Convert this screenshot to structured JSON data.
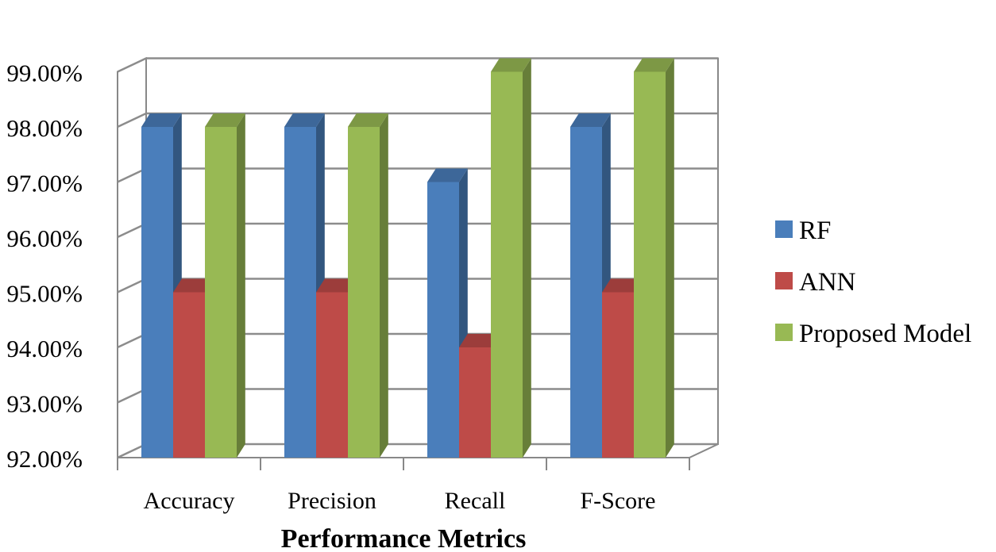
{
  "chart_data": {
    "type": "bar",
    "title": "",
    "xlabel": "Performance Metrics",
    "ylabel": "",
    "categories": [
      "Accuracy",
      "Precision",
      "Recall",
      "F-Score"
    ],
    "series": [
      {
        "name": "RF",
        "values": [
          98.0,
          98.0,
          97.0,
          98.0
        ],
        "color": "#4a7ebb"
      },
      {
        "name": "ANN",
        "values": [
          95.0,
          95.0,
          94.0,
          95.0
        ],
        "color": "#be4b48"
      },
      {
        "name": "Proposed Model",
        "values": [
          98.0,
          98.0,
          99.0,
          99.0
        ],
        "color": "#98b954"
      }
    ],
    "ylim": [
      92,
      99
    ],
    "yticks": [
      "92.00%",
      "93.00%",
      "94.00%",
      "95.00%",
      "96.00%",
      "97.00%",
      "98.00%",
      "99.00%"
    ],
    "grid": true,
    "legend_position": "right"
  }
}
